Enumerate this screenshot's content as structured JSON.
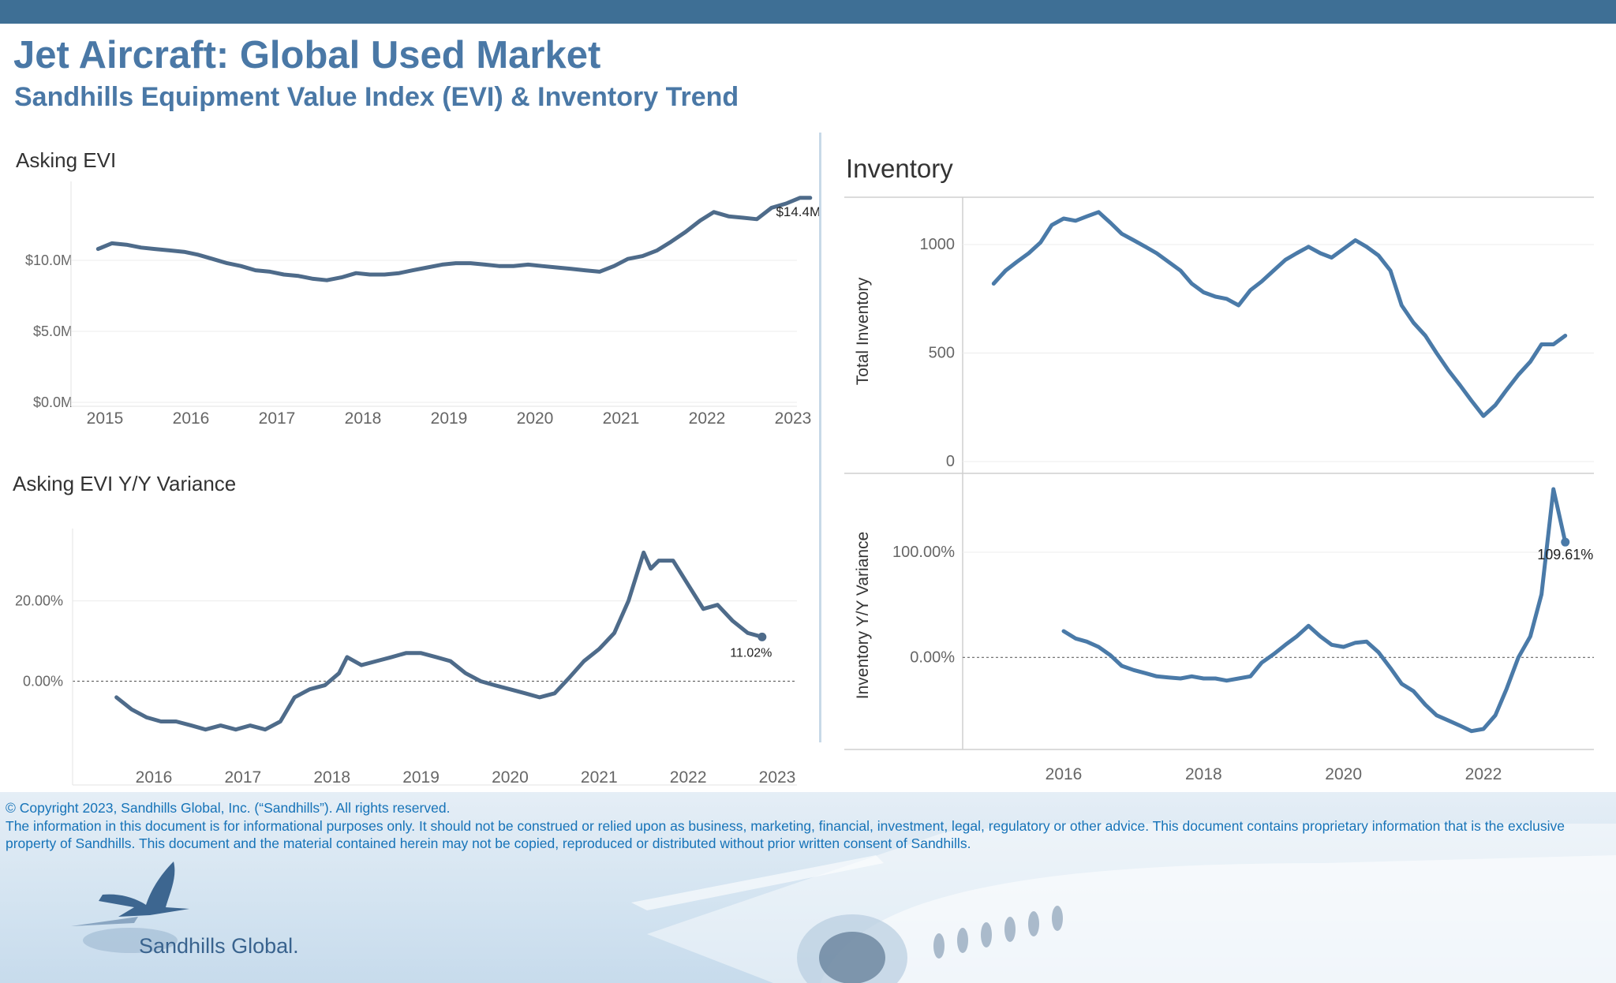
{
  "header": {
    "title": "Jet Aircraft:  Global Used Market",
    "subtitle": "Sandhills Equipment Value Index (EVI) & Inventory Trend"
  },
  "colors": {
    "accent": "#4a78a6",
    "line": "#4e6b8a",
    "inventory_line": "#4a7aa8",
    "top_bar": "#3e6f95",
    "footer_text": "#1673b8"
  },
  "chart_data": [
    {
      "id": "asking-evi",
      "type": "line",
      "title": "Asking EVI",
      "x_ticks": [
        "2015",
        "2016",
        "2017",
        "2018",
        "2019",
        "2020",
        "2021",
        "2022",
        "2023"
      ],
      "y_ticks": [
        "$0.0M",
        "$5.0M",
        "$10.0M"
      ],
      "ylim": [
        0,
        15
      ],
      "grid": true,
      "end_label": "$14.4M",
      "series": [
        {
          "x": [
            2014.92,
            2015.08,
            2015.25,
            2015.42,
            2015.58,
            2015.75,
            2015.92,
            2016.08,
            2016.25,
            2016.42,
            2016.58,
            2016.75,
            2016.92,
            2017.08,
            2017.25,
            2017.42,
            2017.58,
            2017.75,
            2017.92,
            2018.08,
            2018.25,
            2018.42,
            2018.58,
            2018.75,
            2018.92,
            2019.08,
            2019.25,
            2019.42,
            2019.58,
            2019.75,
            2019.92,
            2020.08,
            2020.25,
            2020.42,
            2020.58,
            2020.75,
            2020.92,
            2021.08,
            2021.25,
            2021.42,
            2021.58,
            2021.75,
            2021.92,
            2022.08,
            2022.25,
            2022.42,
            2022.58,
            2022.75,
            2022.92,
            2023.08,
            2023.2
          ],
          "values": [
            10.8,
            11.2,
            11.1,
            10.9,
            10.8,
            10.7,
            10.6,
            10.4,
            10.1,
            9.8,
            9.6,
            9.3,
            9.2,
            9.0,
            8.9,
            8.7,
            8.6,
            8.8,
            9.1,
            9.0,
            9.0,
            9.1,
            9.3,
            9.5,
            9.7,
            9.8,
            9.8,
            9.7,
            9.6,
            9.6,
            9.7,
            9.6,
            9.5,
            9.4,
            9.3,
            9.2,
            9.6,
            10.1,
            10.3,
            10.7,
            11.3,
            12.0,
            12.8,
            13.4,
            13.1,
            13.0,
            12.9,
            13.7,
            14.0,
            14.4,
            14.4
          ]
        }
      ]
    },
    {
      "id": "asking-evi-yoy",
      "type": "line",
      "title": "Asking EVI Y/Y Variance",
      "x_ticks": [
        "2016",
        "2017",
        "2018",
        "2019",
        "2020",
        "2021",
        "2022",
        "2023"
      ],
      "y_ticks": [
        "0.00%",
        "20.00%"
      ],
      "ylim": [
        -15,
        36
      ],
      "grid": true,
      "end_label": "11.02%",
      "series": [
        {
          "x": [
            2015.58,
            2015.75,
            2015.92,
            2016.08,
            2016.25,
            2016.42,
            2016.58,
            2016.75,
            2016.92,
            2017.08,
            2017.25,
            2017.42,
            2017.58,
            2017.75,
            2017.92,
            2018.08,
            2018.17,
            2018.33,
            2018.5,
            2018.67,
            2018.83,
            2019.0,
            2019.17,
            2019.33,
            2019.5,
            2019.67,
            2019.83,
            2020.0,
            2020.17,
            2020.33,
            2020.5,
            2020.67,
            2020.83,
            2021.0,
            2021.17,
            2021.33,
            2021.5,
            2021.58,
            2021.67,
            2021.83,
            2022.0,
            2022.17,
            2022.33,
            2022.5,
            2022.67,
            2022.83
          ],
          "values": [
            -4,
            -7,
            -9,
            -10,
            -10,
            -11,
            -12,
            -11,
            -12,
            -11,
            -12,
            -10,
            -4,
            -2,
            -1,
            2,
            6,
            4,
            5,
            6,
            7,
            7,
            6,
            5,
            2,
            0,
            -1,
            -2,
            -3,
            -4,
            -3,
            1,
            5,
            8,
            12,
            20,
            32,
            28,
            30,
            30,
            24,
            18,
            19,
            15,
            12,
            11.02
          ]
        }
      ]
    },
    {
      "id": "inventory",
      "type": "line",
      "title": "Inventory",
      "ylabel": "Total Inventory",
      "x_ticks": [
        "2016",
        "2018",
        "2020",
        "2022"
      ],
      "y_ticks": [
        "0",
        "500",
        "1000"
      ],
      "ylim": [
        0,
        1200
      ],
      "grid": true,
      "series": [
        {
          "x": [
            2015.0,
            2015.17,
            2015.33,
            2015.5,
            2015.67,
            2015.83,
            2016.0,
            2016.17,
            2016.33,
            2016.5,
            2016.67,
            2016.83,
            2017.0,
            2017.17,
            2017.33,
            2017.5,
            2017.67,
            2017.83,
            2018.0,
            2018.17,
            2018.33,
            2018.5,
            2018.67,
            2018.83,
            2019.0,
            2019.17,
            2019.33,
            2019.5,
            2019.67,
            2019.83,
            2020.0,
            2020.17,
            2020.33,
            2020.5,
            2020.67,
            2020.83,
            2021.0,
            2021.17,
            2021.33,
            2021.5,
            2021.67,
            2021.83,
            2022.0,
            2022.17,
            2022.33,
            2022.5,
            2022.67,
            2022.83,
            2023.0,
            2023.17
          ],
          "values": [
            820,
            880,
            920,
            960,
            1010,
            1090,
            1120,
            1110,
            1130,
            1150,
            1100,
            1050,
            1020,
            990,
            960,
            920,
            880,
            820,
            780,
            760,
            750,
            720,
            790,
            830,
            880,
            930,
            960,
            990,
            960,
            940,
            980,
            1020,
            990,
            950,
            880,
            720,
            640,
            580,
            500,
            420,
            350,
            280,
            210,
            260,
            330,
            400,
            460,
            540,
            540,
            580
          ]
        }
      ]
    },
    {
      "id": "inventory-yoy",
      "type": "line",
      "ylabel": "Inventory  Y/Y Variance",
      "x_ticks": [
        "2016",
        "2018",
        "2020",
        "2022"
      ],
      "y_ticks": [
        "0.00%",
        "100.00%"
      ],
      "ylim": [
        -80,
        160
      ],
      "grid": true,
      "end_label": "109.61%",
      "series": [
        {
          "x": [
            2016.0,
            2016.17,
            2016.33,
            2016.5,
            2016.67,
            2016.83,
            2017.0,
            2017.17,
            2017.33,
            2017.5,
            2017.67,
            2017.83,
            2018.0,
            2018.17,
            2018.33,
            2018.5,
            2018.67,
            2018.83,
            2019.0,
            2019.17,
            2019.33,
            2019.5,
            2019.67,
            2019.83,
            2020.0,
            2020.17,
            2020.33,
            2020.5,
            2020.67,
            2020.83,
            2021.0,
            2021.17,
            2021.33,
            2021.5,
            2021.67,
            2021.83,
            2022.0,
            2022.17,
            2022.33,
            2022.5,
            2022.67,
            2022.83,
            2023.0,
            2023.17
          ],
          "values": [
            25,
            18,
            15,
            10,
            2,
            -8,
            -12,
            -15,
            -18,
            -19,
            -20,
            -18,
            -20,
            -20,
            -22,
            -20,
            -18,
            -5,
            3,
            12,
            20,
            30,
            20,
            12,
            10,
            14,
            15,
            5,
            -10,
            -25,
            -32,
            -45,
            -55,
            -60,
            -65,
            -70,
            -68,
            -55,
            -30,
            0,
            20,
            60,
            160,
            109.61
          ]
        }
      ]
    }
  ],
  "footer": {
    "copyright": "© Copyright 2023, Sandhills Global, Inc. (“Sandhills”). All rights reserved.",
    "disclaimer": "The information in this document is for informational purposes only.  It should not be construed or relied upon as business, marketing, financial, investment, legal, regulatory or other advice. This document contains proprietary information that is the exclusive property of Sandhills. This document and the material contained herein may not be copied, reproduced or distributed without prior written consent of Sandhills.",
    "logo_text": "Sandhills Global."
  }
}
